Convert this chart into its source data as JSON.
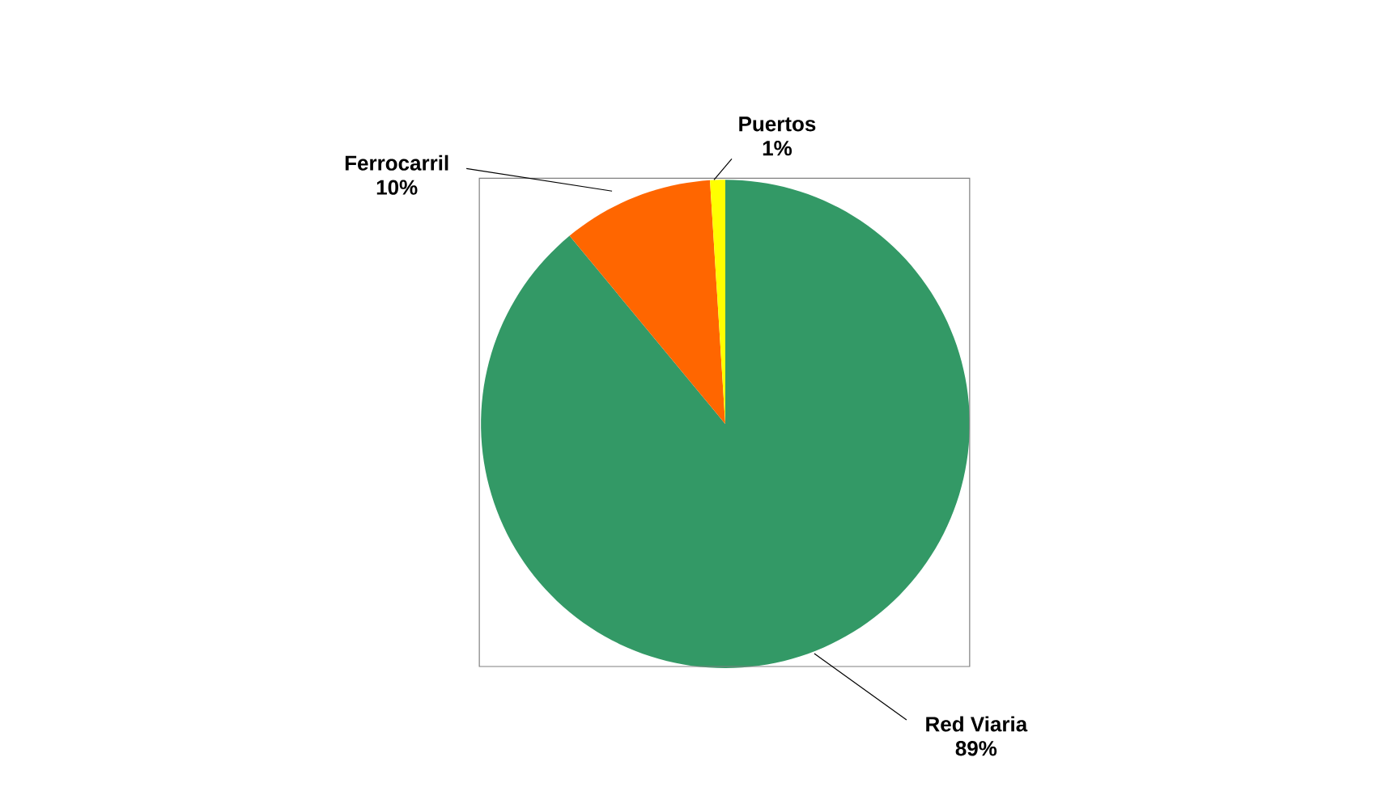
{
  "chart_data": {
    "type": "pie",
    "categories": [
      "Red Viaria",
      "Ferrocarril",
      "Puertos"
    ],
    "values": [
      89,
      10,
      1
    ],
    "colors": [
      "#339966",
      "#ff6600",
      "#ffff00"
    ],
    "value_labels": [
      "89%",
      "10%",
      "1%"
    ]
  }
}
